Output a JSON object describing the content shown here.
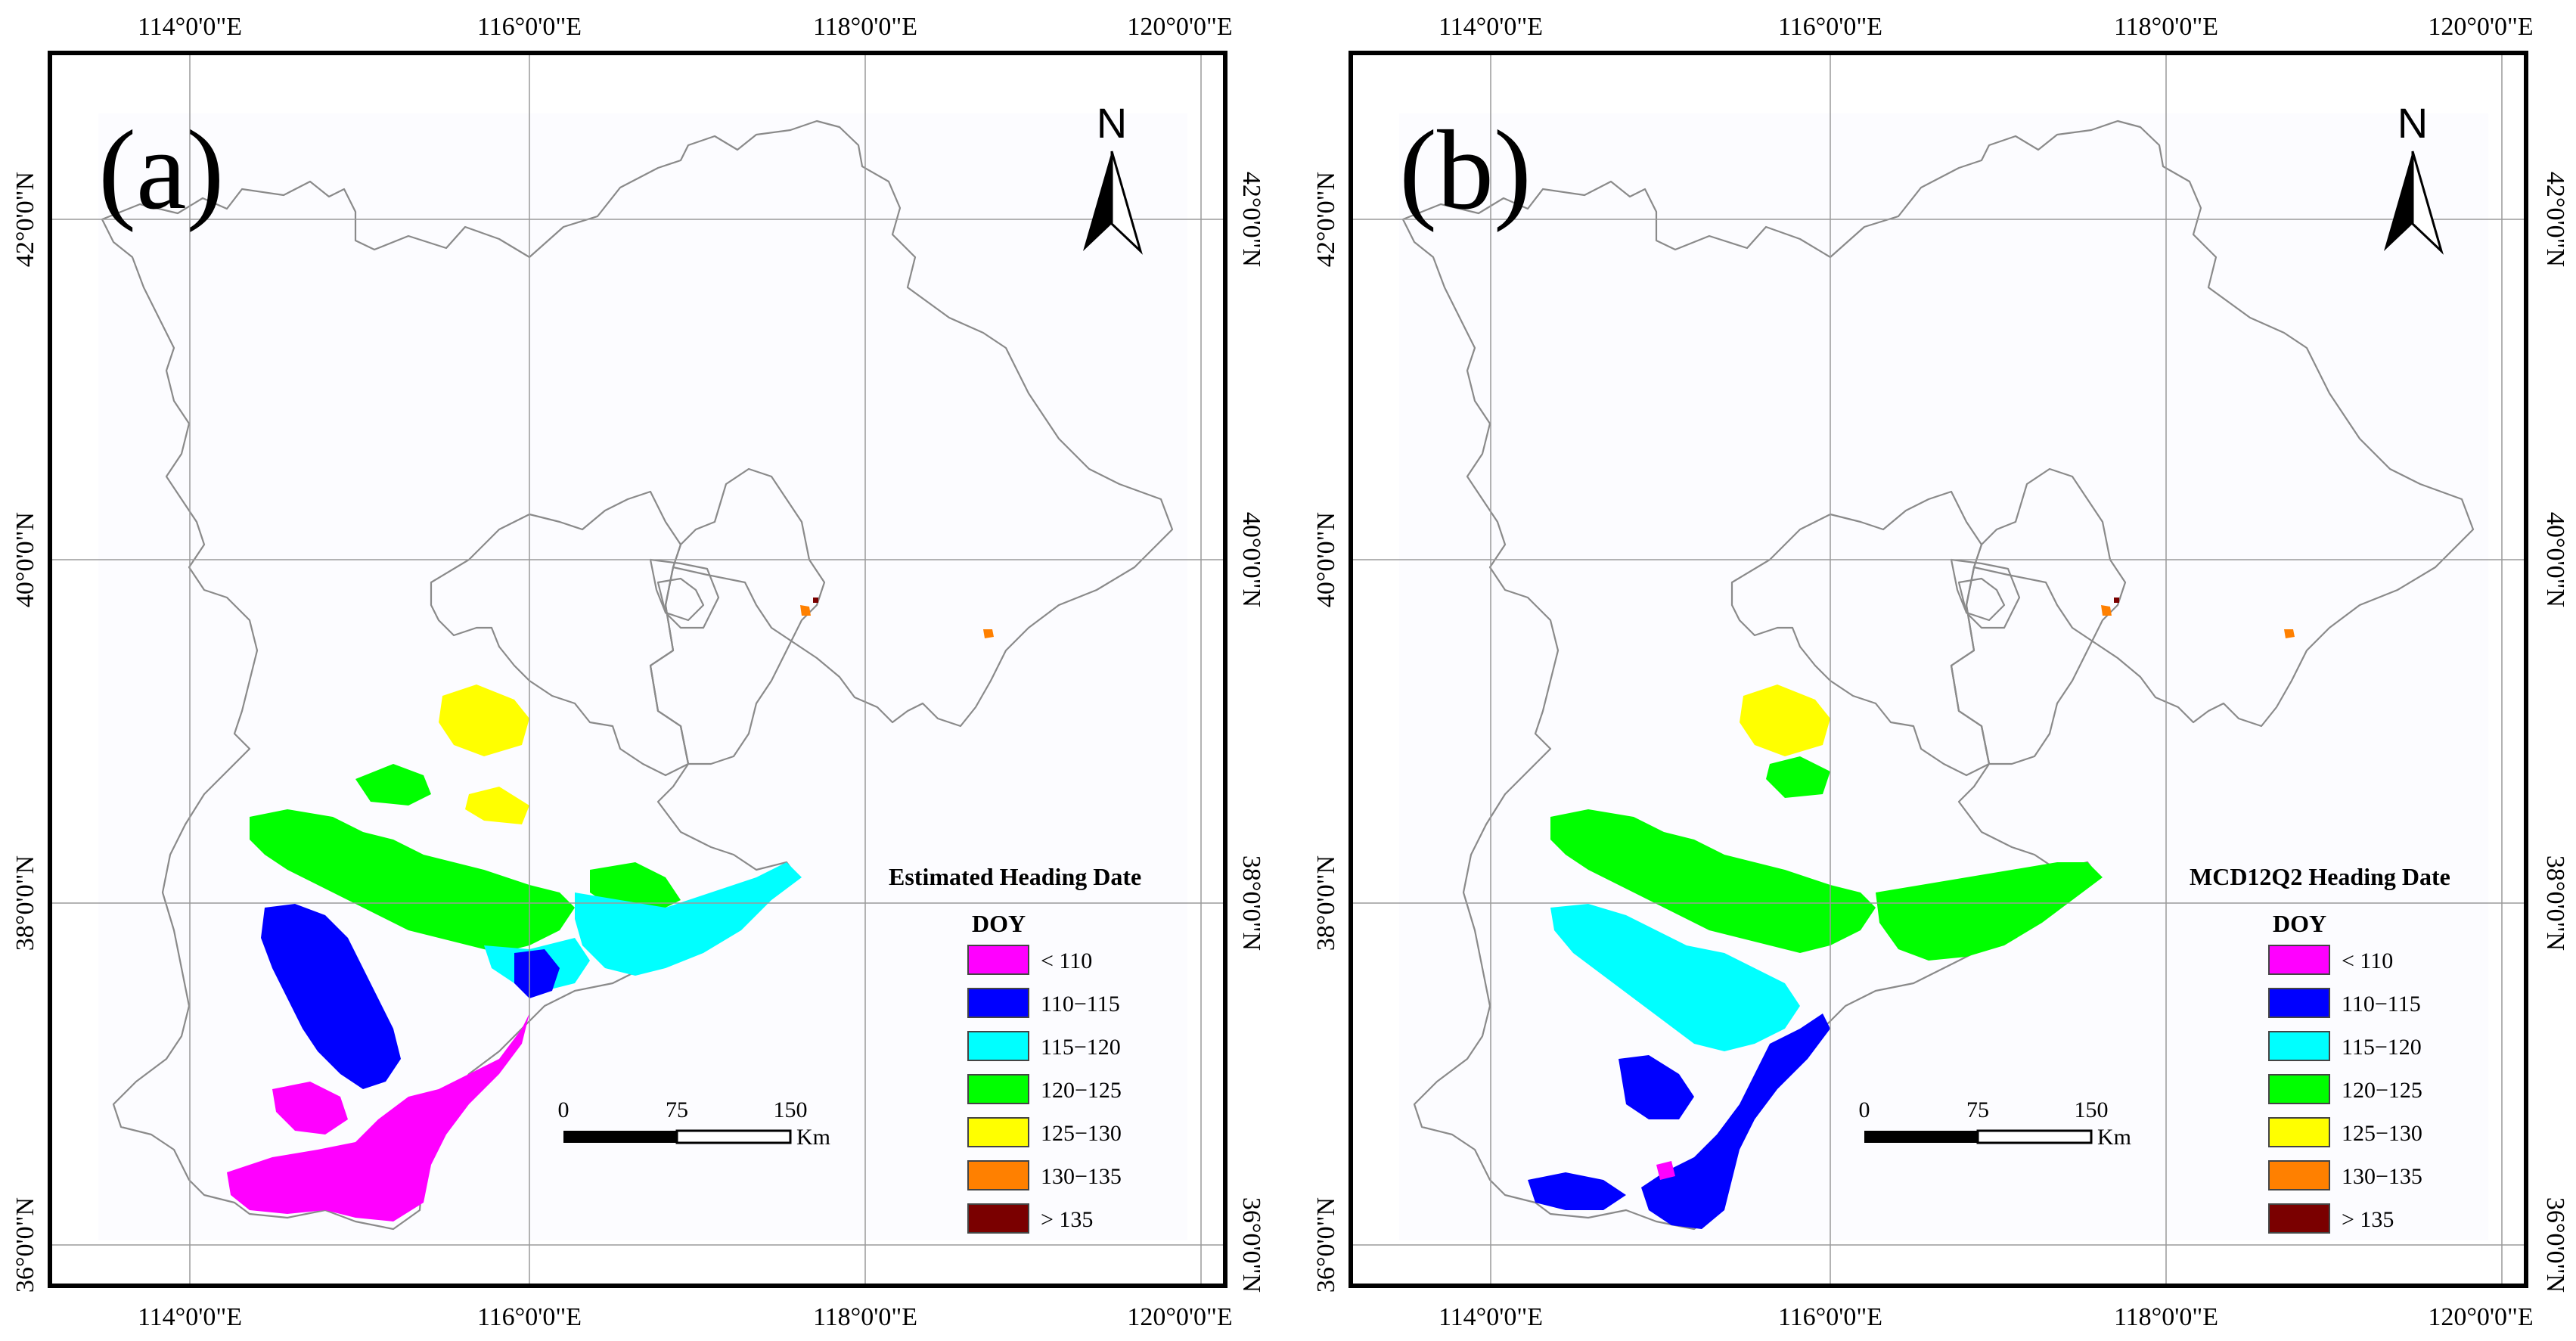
{
  "figure": {
    "panels": [
      {
        "id": "a",
        "label": "(a)",
        "legend_title": "Estimated Heading Date",
        "dominant_classes": [
          "< 110",
          "110−115",
          "115−120",
          "120−125",
          "125−130"
        ]
      },
      {
        "id": "b",
        "label": "(b)",
        "legend_title": "MCD12Q2 Heading Date",
        "dominant_classes": [
          "110−115",
          "115−120",
          "120−125",
          "125−130"
        ]
      }
    ],
    "north_label": "N",
    "legend": {
      "unit": "DOY",
      "classes": [
        {
          "label": "< 110",
          "color": "#ff00ff"
        },
        {
          "label": "110−115",
          "color": "#0000ff"
        },
        {
          "label": "115−120",
          "color": "#00ffff"
        },
        {
          "label": "120−125",
          "color": "#00ff00"
        },
        {
          "label": "125−130",
          "color": "#ffff00"
        },
        {
          "label": "130−135",
          "color": "#ff8000"
        },
        {
          "label": "> 135",
          "color": "#7a0000"
        }
      ]
    },
    "scalebar": {
      "ticks": [
        "0",
        "75",
        "150"
      ],
      "unit": "Km"
    },
    "axes": {
      "longitude_labels": [
        "114°0'0\"E",
        "116°0'0\"E",
        "118°0'0\"E",
        "120°0'0\"E"
      ],
      "latitude_labels": [
        "36°0'0\"N",
        "38°0'0\"N",
        "40°0'0\"N",
        "42°0'0\"N"
      ]
    }
  }
}
